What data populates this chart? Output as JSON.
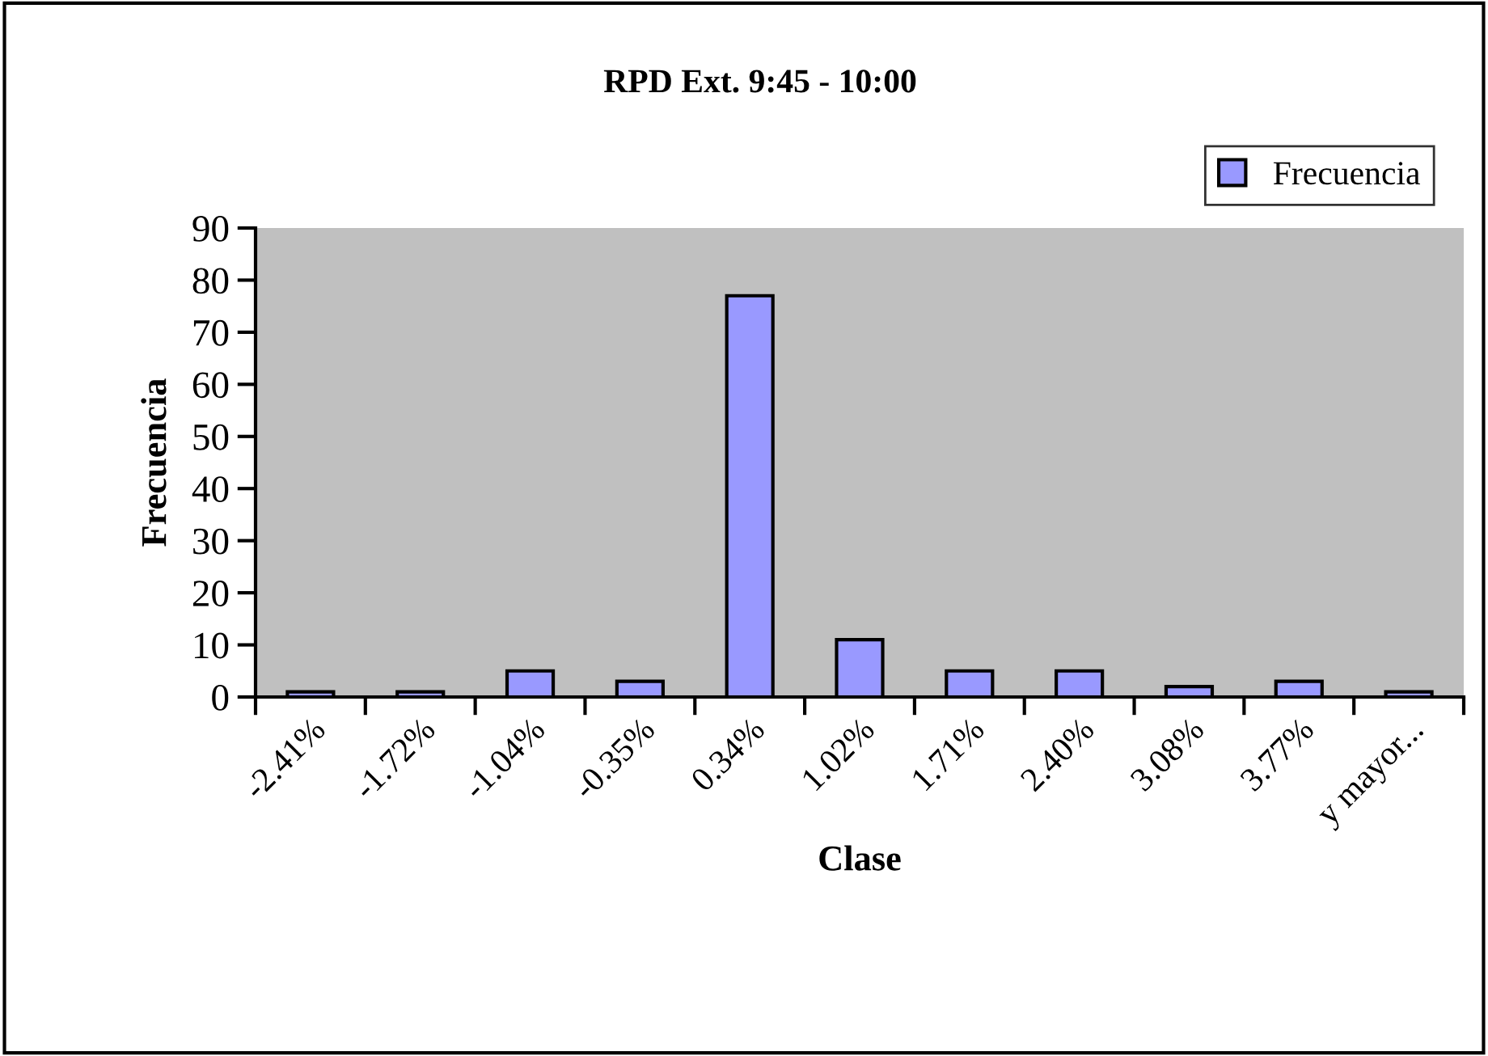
{
  "chart_data": {
    "type": "bar",
    "title": "RPD Ext. 9:45 - 10:00",
    "xlabel": "Clase",
    "ylabel": "Frecuencia",
    "categories": [
      "-2.41%",
      "-1.72%",
      "-1.04%",
      "-0.35%",
      "0.34%",
      "1.02%",
      "1.71%",
      "2.40%",
      "3.08%",
      "3.77%",
      "y mayor..."
    ],
    "series": [
      {
        "name": "Frecuencia",
        "color": "#9999ff",
        "values": [
          1,
          1,
          5,
          3,
          77,
          11,
          5,
          5,
          2,
          3,
          1
        ]
      }
    ],
    "ylim": [
      0,
      90
    ],
    "yticks": [
      0,
      10,
      20,
      30,
      40,
      50,
      60,
      70,
      80,
      90
    ],
    "grid": false,
    "legend": "top right"
  }
}
